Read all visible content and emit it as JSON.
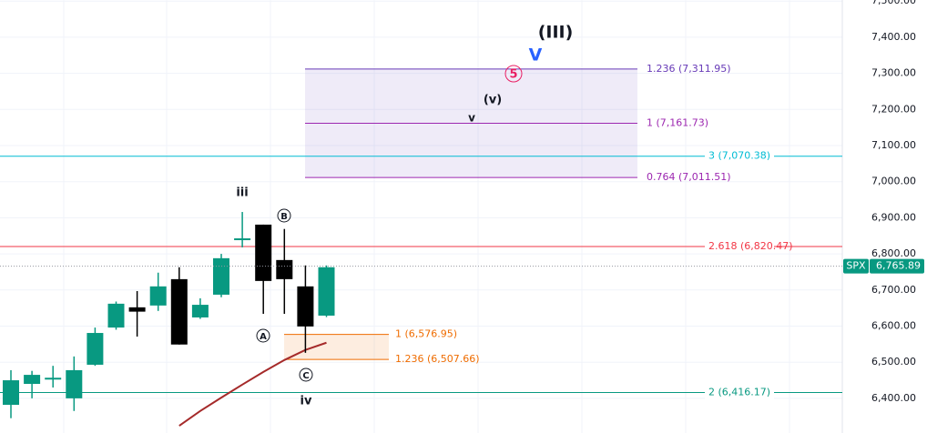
{
  "chart_data": {
    "type": "candlestick",
    "symbol": "SPX",
    "last_price": 6765.89,
    "last_price_label": "6,765.89",
    "up_color": "#089981",
    "down_color": "#000000",
    "ylim": [
      6304,
      7503
    ],
    "yticks": [
      {
        "value": 6400,
        "label": "6,400.00"
      },
      {
        "value": 6500,
        "label": "6,500.00"
      },
      {
        "value": 6600,
        "label": "6,600.00"
      },
      {
        "value": 6700,
        "label": "6,700.00"
      },
      {
        "value": 6800,
        "label": "6,800.00"
      },
      {
        "value": 6900,
        "label": "6,900.00"
      },
      {
        "value": 7000,
        "label": "7,000.00"
      },
      {
        "value": 7100,
        "label": "7,100.00"
      },
      {
        "value": 7200,
        "label": "7,200.00"
      },
      {
        "value": 7300,
        "label": "7,300.00"
      },
      {
        "value": 7400,
        "label": "7,400.00"
      },
      {
        "value": 7500,
        "label": "7,500.00"
      }
    ],
    "open": [
      6382,
      6440,
      6455,
      6400,
      6493,
      6596,
      6652,
      6657,
      6730,
      6624,
      6687,
      6841,
      6881,
      6783,
      6710,
      6629
    ],
    "high": [
      6478,
      6476,
      6490,
      6516,
      6596,
      6668,
      6697,
      6748,
      6763,
      6677,
      6800,
      6916,
      6881,
      6869,
      6768,
      6768
    ],
    "low": [
      6345,
      6400,
      6430,
      6365,
      6490,
      6590,
      6571,
      6642,
      6549,
      6620,
      6680,
      6818,
      6634,
      6634,
      6526,
      6625
    ],
    "close": [
      6450,
      6465,
      6457,
      6478,
      6581,
      6662,
      6640,
      6710,
      6549,
      6659,
      6788,
      6843,
      6725,
      6730,
      6599,
      6763
    ],
    "moving_average": {
      "color": "#a52a2a",
      "values": [
        null,
        null,
        null,
        null,
        null,
        null,
        null,
        null,
        6324,
        6365,
        6402,
        6438,
        6473,
        6506,
        6534,
        6554
      ]
    },
    "levels": [
      {
        "label": "1.236 (7,311.95)",
        "value": 7311.95,
        "color": "#673ab7"
      },
      {
        "label": "1 (7,161.73)",
        "value": 7161.73,
        "color": "#9c27b0"
      },
      {
        "label": "0.764 (7,011.51)",
        "value": 7011.51,
        "color": "#9c27b0"
      },
      {
        "label": "3 (7,070.38)",
        "value": 7070.38,
        "color": "#00bcd4"
      },
      {
        "label": "2.618 (6,820.47)",
        "value": 6820.47,
        "color": "#f23645"
      },
      {
        "label": "1 (6,576.95)",
        "value": 6576.95,
        "color": "#ef6c00"
      },
      {
        "label": "1.236 (6,507.66)",
        "value": 6507.66,
        "color": "#ef6c00"
      },
      {
        "label": "2 (6,416.17)",
        "value": 6416.17,
        "color": "#089981"
      }
    ],
    "annotations": [
      {
        "text": "(III)",
        "color": "#131722",
        "circled": false
      },
      {
        "text": "V",
        "color": "#2962ff",
        "circled": false
      },
      {
        "text": "5",
        "color": "#e91e63",
        "circled": true
      },
      {
        "text": "(v)",
        "color": "#131722",
        "circled": false
      },
      {
        "text": "v",
        "color": "#131722",
        "circled": false
      },
      {
        "text": "iii",
        "color": "#131722",
        "circled": false
      },
      {
        "text": "B",
        "color": "#131722",
        "circled": true
      },
      {
        "text": "A",
        "color": "#131722",
        "circled": true
      },
      {
        "text": "C",
        "color": "#131722",
        "circled": true
      },
      {
        "text": "iv",
        "color": "#131722",
        "circled": false
      }
    ]
  }
}
